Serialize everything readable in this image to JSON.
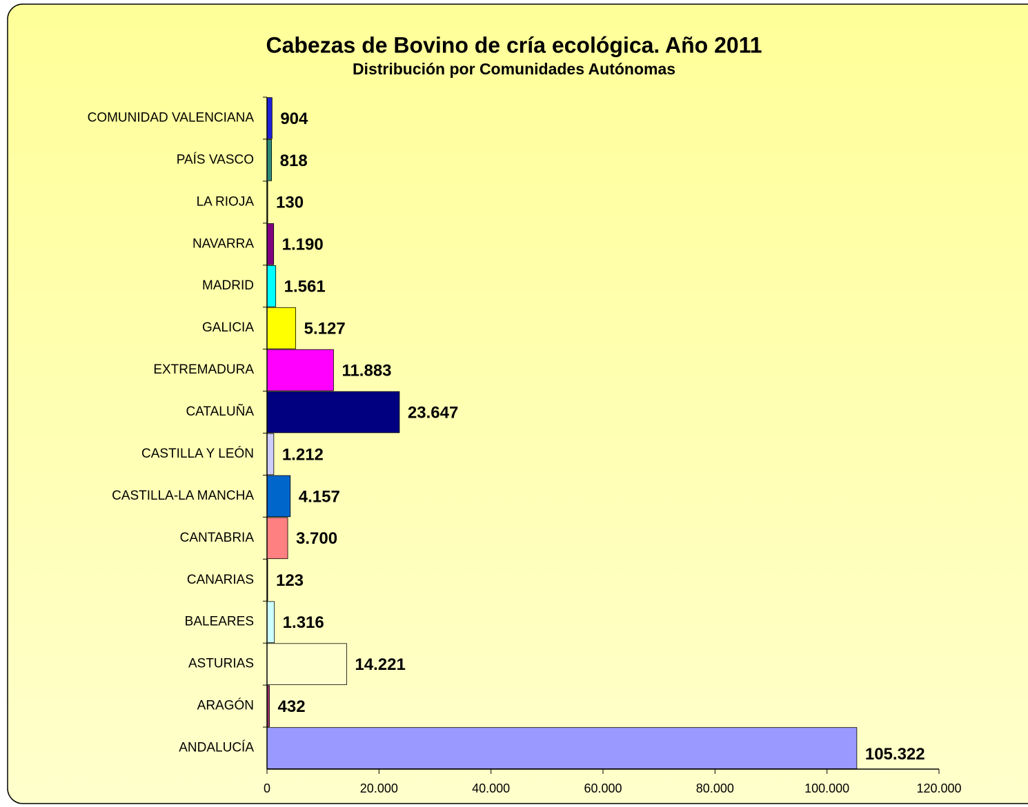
{
  "chart_data": {
    "type": "bar",
    "orientation": "horizontal",
    "title": "Cabezas de Bovino de cría ecológica. Año 2011",
    "subtitle": "Distribución por Comunidades Autónomas",
    "categories": [
      "COMUNIDAD VALENCIANA",
      "PAÍS VASCO",
      "LA RIOJA",
      "NAVARRA",
      "MADRID",
      "GALICIA",
      "EXTREMADURA",
      "CATALUÑA",
      "CASTILLA Y LEÓN",
      "CASTILLA-LA MANCHA",
      "CANTABRIA",
      "CANARIAS",
      "BALEARES",
      "ASTURIAS",
      "ARAGÓN",
      "ANDALUCÍA"
    ],
    "values": [
      904,
      818,
      130,
      1190,
      1561,
      5127,
      11883,
      23647,
      1212,
      4157,
      3700,
      123,
      1316,
      14221,
      432,
      105322
    ],
    "value_labels": [
      "904",
      "818",
      "130",
      "1.190",
      "1.561",
      "5.127",
      "11.883",
      "23.647",
      "1.212",
      "4.157",
      "3.700",
      "123",
      "1.316",
      "14.221",
      "432",
      "105.322"
    ],
    "colors": [
      "#1f1fd8",
      "#2e8b7a",
      "#808000",
      "#800080",
      "#00ffff",
      "#ffff00",
      "#ff00ff",
      "#000080",
      "#ccccff",
      "#0066cc",
      "#ff8080",
      "#333300",
      "#ccffff",
      "#ffffcc",
      "#993366",
      "#9999ff"
    ],
    "xlim": [
      0,
      120000
    ],
    "xticks": [
      0,
      {
        "value": 20000,
        "label": "20.000"
      },
      {
        "value": 40000,
        "label": "40.000"
      },
      {
        "value": 60000,
        "label": "60.000"
      },
      {
        "value": 80000,
        "label": "80.000"
      },
      {
        "value": 100000,
        "label": "100.000"
      },
      {
        "value": 120000,
        "label": "120.000"
      }
    ],
    "grid": false
  }
}
